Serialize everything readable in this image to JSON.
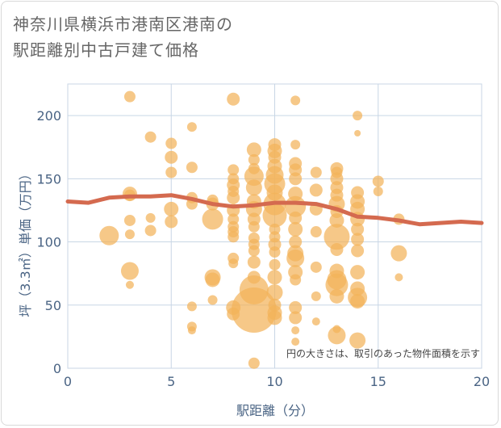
{
  "title_lines": [
    "神奈川県横浜市港南区港南の",
    "駅距離別中古戸建て価格"
  ],
  "chart_data": {
    "type": "scatter",
    "xlabel": "駅距離（分）",
    "ylabel": "坪（3.3㎡）単価（万円）",
    "xlim": [
      0,
      20
    ],
    "ylim": [
      0,
      225
    ],
    "x_ticks": [
      0,
      5,
      10,
      15,
      20
    ],
    "y_ticks": [
      0,
      50,
      100,
      150,
      200
    ],
    "grid": true,
    "annotation": "円の大きさは、取引のあった物件面積を示す",
    "colors": {
      "bubble": "#f2b35a",
      "trend": "#d46a4f",
      "grid": "#c8d6e5",
      "axis_text": "#4a6484"
    },
    "points": [
      {
        "x": 2,
        "y": 105,
        "s": 12
      },
      {
        "x": 3,
        "y": 215,
        "s": 7
      },
      {
        "x": 3,
        "y": 138,
        "s": 9
      },
      {
        "x": 3,
        "y": 137,
        "s": 7
      },
      {
        "x": 3,
        "y": 117,
        "s": 7
      },
      {
        "x": 3,
        "y": 106,
        "s": 6
      },
      {
        "x": 3,
        "y": 77,
        "s": 11
      },
      {
        "x": 3,
        "y": 66,
        "s": 5
      },
      {
        "x": 4,
        "y": 183,
        "s": 7
      },
      {
        "x": 4,
        "y": 119,
        "s": 6
      },
      {
        "x": 4,
        "y": 109,
        "s": 7
      },
      {
        "x": 5,
        "y": 178,
        "s": 7
      },
      {
        "x": 5,
        "y": 167,
        "s": 8
      },
      {
        "x": 5,
        "y": 155,
        "s": 7
      },
      {
        "x": 5,
        "y": 126,
        "s": 9
      },
      {
        "x": 5,
        "y": 116,
        "s": 8
      },
      {
        "x": 6,
        "y": 191,
        "s": 6
      },
      {
        "x": 6,
        "y": 159,
        "s": 7
      },
      {
        "x": 6,
        "y": 135,
        "s": 7
      },
      {
        "x": 6,
        "y": 130,
        "s": 7
      },
      {
        "x": 6,
        "y": 49,
        "s": 6
      },
      {
        "x": 6,
        "y": 33,
        "s": 6
      },
      {
        "x": 6,
        "y": 30,
        "s": 5
      },
      {
        "x": 7,
        "y": 133,
        "s": 7
      },
      {
        "x": 7,
        "y": 130,
        "s": 8
      },
      {
        "x": 7,
        "y": 118,
        "s": 13
      },
      {
        "x": 7,
        "y": 72,
        "s": 10
      },
      {
        "x": 7,
        "y": 70,
        "s": 9
      },
      {
        "x": 7,
        "y": 54,
        "s": 6
      },
      {
        "x": 8,
        "y": 213,
        "s": 8
      },
      {
        "x": 8,
        "y": 157,
        "s": 7
      },
      {
        "x": 8,
        "y": 150,
        "s": 7
      },
      {
        "x": 8,
        "y": 145,
        "s": 8
      },
      {
        "x": 8,
        "y": 140,
        "s": 7
      },
      {
        "x": 8,
        "y": 135,
        "s": 8
      },
      {
        "x": 8,
        "y": 125,
        "s": 8
      },
      {
        "x": 8,
        "y": 118,
        "s": 7
      },
      {
        "x": 8,
        "y": 112,
        "s": 7
      },
      {
        "x": 8,
        "y": 108,
        "s": 7
      },
      {
        "x": 8,
        "y": 104,
        "s": 7
      },
      {
        "x": 8,
        "y": 87,
        "s": 7
      },
      {
        "x": 8,
        "y": 83,
        "s": 6
      },
      {
        "x": 8,
        "y": 48,
        "s": 9
      },
      {
        "x": 8,
        "y": 43,
        "s": 8
      },
      {
        "x": 9,
        "y": 173,
        "s": 9
      },
      {
        "x": 9,
        "y": 165,
        "s": 7
      },
      {
        "x": 9,
        "y": 158,
        "s": 7
      },
      {
        "x": 9,
        "y": 152,
        "s": 12
      },
      {
        "x": 9,
        "y": 143,
        "s": 10
      },
      {
        "x": 9,
        "y": 132,
        "s": 9
      },
      {
        "x": 9,
        "y": 126,
        "s": 10
      },
      {
        "x": 9,
        "y": 118,
        "s": 8
      },
      {
        "x": 9,
        "y": 112,
        "s": 7
      },
      {
        "x": 9,
        "y": 103,
        "s": 7
      },
      {
        "x": 9,
        "y": 98,
        "s": 7
      },
      {
        "x": 9,
        "y": 93,
        "s": 7
      },
      {
        "x": 9,
        "y": 84,
        "s": 8
      },
      {
        "x": 9,
        "y": 72,
        "s": 8
      },
      {
        "x": 9,
        "y": 62,
        "s": 18
      },
      {
        "x": 9,
        "y": 46,
        "s": 28
      },
      {
        "x": 9,
        "y": 4,
        "s": 7
      },
      {
        "x": 10,
        "y": 177,
        "s": 8
      },
      {
        "x": 10,
        "y": 172,
        "s": 9
      },
      {
        "x": 10,
        "y": 167,
        "s": 8
      },
      {
        "x": 10,
        "y": 160,
        "s": 9
      },
      {
        "x": 10,
        "y": 153,
        "s": 11
      },
      {
        "x": 10,
        "y": 146,
        "s": 13
      },
      {
        "x": 10,
        "y": 139,
        "s": 10
      },
      {
        "x": 10,
        "y": 130,
        "s": 14
      },
      {
        "x": 10,
        "y": 121,
        "s": 15
      },
      {
        "x": 10,
        "y": 110,
        "s": 7
      },
      {
        "x": 10,
        "y": 104,
        "s": 7
      },
      {
        "x": 10,
        "y": 98,
        "s": 8
      },
      {
        "x": 10,
        "y": 92,
        "s": 7
      },
      {
        "x": 10,
        "y": 82,
        "s": 7
      },
      {
        "x": 10,
        "y": 72,
        "s": 9
      },
      {
        "x": 10,
        "y": 60,
        "s": 10
      },
      {
        "x": 10,
        "y": 50,
        "s": 8
      },
      {
        "x": 10,
        "y": 44,
        "s": 9
      },
      {
        "x": 10,
        "y": 40,
        "s": 9
      },
      {
        "x": 11,
        "y": 212,
        "s": 6
      },
      {
        "x": 11,
        "y": 177,
        "s": 6
      },
      {
        "x": 11,
        "y": 162,
        "s": 8
      },
      {
        "x": 11,
        "y": 157,
        "s": 8
      },
      {
        "x": 11,
        "y": 150,
        "s": 8
      },
      {
        "x": 11,
        "y": 138,
        "s": 9
      },
      {
        "x": 11,
        "y": 128,
        "s": 13
      },
      {
        "x": 11,
        "y": 119,
        "s": 8
      },
      {
        "x": 11,
        "y": 110,
        "s": 9
      },
      {
        "x": 11,
        "y": 100,
        "s": 8
      },
      {
        "x": 11,
        "y": 91,
        "s": 10
      },
      {
        "x": 11,
        "y": 87,
        "s": 11
      },
      {
        "x": 11,
        "y": 76,
        "s": 9
      },
      {
        "x": 11,
        "y": 70,
        "s": 7
      },
      {
        "x": 11,
        "y": 48,
        "s": 8
      },
      {
        "x": 11,
        "y": 40,
        "s": 8
      },
      {
        "x": 11,
        "y": 30,
        "s": 5
      },
      {
        "x": 11,
        "y": 21,
        "s": 5
      },
      {
        "x": 12,
        "y": 155,
        "s": 7
      },
      {
        "x": 12,
        "y": 141,
        "s": 8
      },
      {
        "x": 12,
        "y": 126,
        "s": 8
      },
      {
        "x": 12,
        "y": 108,
        "s": 7
      },
      {
        "x": 12,
        "y": 80,
        "s": 7
      },
      {
        "x": 12,
        "y": 57,
        "s": 6
      },
      {
        "x": 12,
        "y": 37,
        "s": 5
      },
      {
        "x": 13,
        "y": 158,
        "s": 8
      },
      {
        "x": 13,
        "y": 155,
        "s": 7
      },
      {
        "x": 13,
        "y": 150,
        "s": 8
      },
      {
        "x": 13,
        "y": 143,
        "s": 8
      },
      {
        "x": 13,
        "y": 137,
        "s": 8
      },
      {
        "x": 13,
        "y": 130,
        "s": 10
      },
      {
        "x": 13,
        "y": 124,
        "s": 8
      },
      {
        "x": 13,
        "y": 117,
        "s": 9
      },
      {
        "x": 13,
        "y": 104,
        "s": 16
      },
      {
        "x": 13,
        "y": 94,
        "s": 8
      },
      {
        "x": 13,
        "y": 77,
        "s": 9
      },
      {
        "x": 13,
        "y": 70,
        "s": 12
      },
      {
        "x": 13,
        "y": 66,
        "s": 14
      },
      {
        "x": 13,
        "y": 57,
        "s": 9
      },
      {
        "x": 13,
        "y": 31,
        "s": 5
      },
      {
        "x": 13,
        "y": 26,
        "s": 11
      },
      {
        "x": 14,
        "y": 200,
        "s": 6
      },
      {
        "x": 14,
        "y": 186,
        "s": 4
      },
      {
        "x": 14,
        "y": 139,
        "s": 8
      },
      {
        "x": 14,
        "y": 132,
        "s": 9
      },
      {
        "x": 14,
        "y": 126,
        "s": 9
      },
      {
        "x": 14,
        "y": 118,
        "s": 9
      },
      {
        "x": 14,
        "y": 110,
        "s": 8
      },
      {
        "x": 14,
        "y": 102,
        "s": 8
      },
      {
        "x": 14,
        "y": 93,
        "s": 8
      },
      {
        "x": 14,
        "y": 76,
        "s": 9
      },
      {
        "x": 14,
        "y": 63,
        "s": 9
      },
      {
        "x": 14,
        "y": 56,
        "s": 12
      },
      {
        "x": 14,
        "y": 53,
        "s": 9
      },
      {
        "x": 14,
        "y": 22,
        "s": 10
      },
      {
        "x": 15,
        "y": 148,
        "s": 7
      },
      {
        "x": 15,
        "y": 140,
        "s": 6
      },
      {
        "x": 16,
        "y": 118,
        "s": 7
      },
      {
        "x": 16,
        "y": 91,
        "s": 10
      },
      {
        "x": 16,
        "y": 72,
        "s": 5
      }
    ],
    "trend": [
      {
        "x": 0,
        "y": 132
      },
      {
        "x": 1,
        "y": 131
      },
      {
        "x": 2,
        "y": 135
      },
      {
        "x": 3,
        "y": 136
      },
      {
        "x": 4,
        "y": 136
      },
      {
        "x": 5,
        "y": 137
      },
      {
        "x": 6,
        "y": 134
      },
      {
        "x": 7,
        "y": 130
      },
      {
        "x": 8,
        "y": 128
      },
      {
        "x": 9,
        "y": 129
      },
      {
        "x": 10,
        "y": 131
      },
      {
        "x": 11,
        "y": 131
      },
      {
        "x": 12,
        "y": 130
      },
      {
        "x": 13,
        "y": 126
      },
      {
        "x": 14,
        "y": 120
      },
      {
        "x": 15,
        "y": 119
      },
      {
        "x": 16,
        "y": 117
      },
      {
        "x": 17,
        "y": 114
      },
      {
        "x": 18,
        "y": 115
      },
      {
        "x": 19,
        "y": 116
      },
      {
        "x": 20,
        "y": 115
      }
    ]
  }
}
